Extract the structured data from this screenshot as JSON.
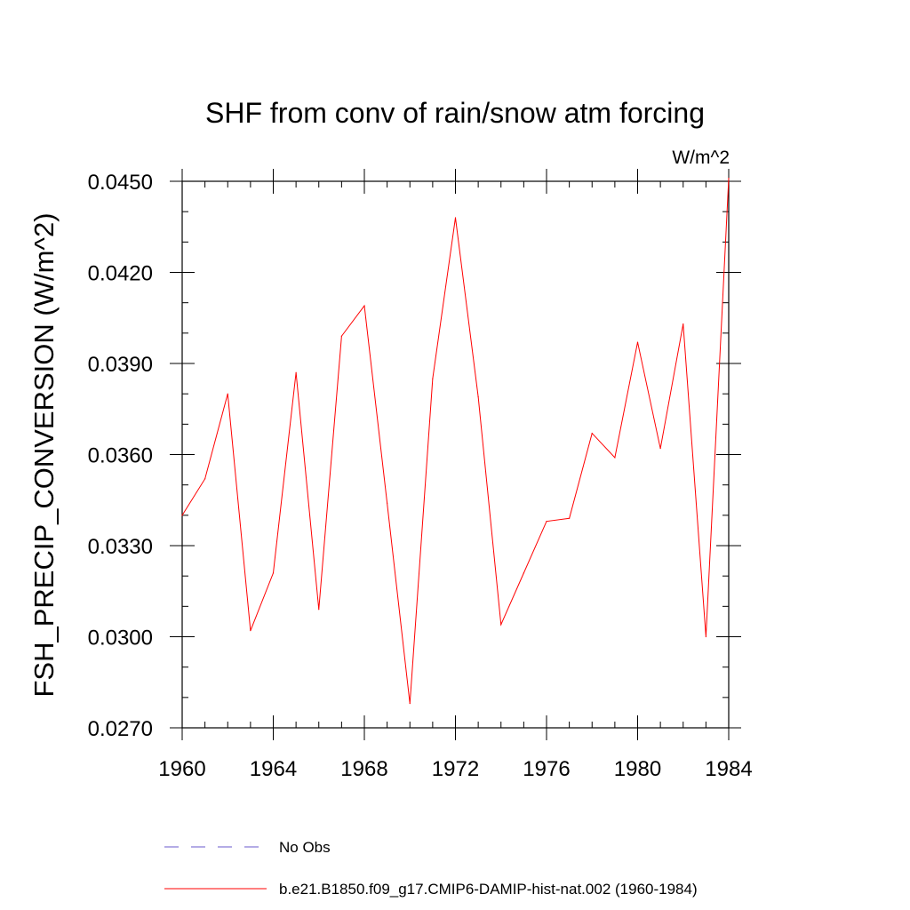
{
  "chart_data": {
    "type": "line",
    "title": "SHF from conv of rain/snow atm forcing",
    "units": "W/m^2",
    "xlabel": "",
    "ylabel": "FSH_PRECIP_CONVERSION  (W/m^2)",
    "xlim": [
      1960,
      1984
    ],
    "ylim": [
      0.027,
      0.045
    ],
    "xticks": [
      1960,
      1964,
      1968,
      1972,
      1976,
      1980,
      1984
    ],
    "xtick_labels": [
      "1960",
      "1964",
      "1968",
      "1972",
      "1976",
      "1980",
      "1984"
    ],
    "yticks": [
      0.027,
      0.03,
      0.033,
      0.036,
      0.039,
      0.042,
      0.045
    ],
    "ytick_labels": [
      "0.0270",
      "0.0300",
      "0.0330",
      "0.0360",
      "0.0390",
      "0.0420",
      "0.0450"
    ],
    "grid": false,
    "legend_position": "bottom",
    "series": [
      {
        "name": "No Obs",
        "color": "#6a5acd",
        "style": "dashed",
        "x": [],
        "values": []
      },
      {
        "name": "b.e21.B1850.f09_g17.CMIP6-DAMIP-hist-nat.002 (1960-1984)",
        "color": "#ff0000",
        "style": "solid",
        "x": [
          1960,
          1961,
          1962,
          1963,
          1964,
          1965,
          1966,
          1967,
          1968,
          1969,
          1970,
          1971,
          1972,
          1973,
          1974,
          1975,
          1976,
          1977,
          1978,
          1979,
          1980,
          1981,
          1982,
          1983,
          1984
        ],
        "values": [
          0.034,
          0.0352,
          0.038,
          0.0302,
          0.0321,
          0.0387,
          0.0309,
          0.0399,
          0.0409,
          0.0344,
          0.0278,
          0.0385,
          0.0438,
          0.0379,
          0.0304,
          0.0321,
          0.0338,
          0.0339,
          0.0367,
          0.0359,
          0.0397,
          0.0362,
          0.0403,
          0.03,
          0.0451
        ]
      }
    ]
  }
}
